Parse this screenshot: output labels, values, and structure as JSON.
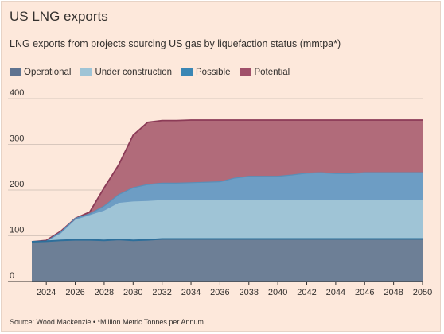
{
  "title": "US LNG exports",
  "subtitle": "LNG exports from projects sourcing US gas by liquefaction status (mmtpa*)",
  "source": "Source: Wood Mackenzie • *Million Metric Tonnes per Annum",
  "colors": {
    "background": "#fde8db",
    "gridline": "#d8c7bd",
    "operational": "#6d7f96",
    "under_construction": "#9fc4d6",
    "possible": "#6d9dc4",
    "potential": "#b16b7a",
    "operational_line": "#2d6f9b",
    "potential_line": "#8c3b57"
  },
  "chart_data": {
    "type": "area",
    "stacked": true,
    "title": "US LNG exports",
    "subtitle": "LNG exports from projects sourcing US gas by liquefaction status (mmtpa*)",
    "xlim": [
      2023,
      2050
    ],
    "ylim": [
      0,
      400
    ],
    "x_ticks": [
      "2024",
      "2026",
      "2028",
      "2030",
      "2032",
      "2034",
      "2036",
      "2038",
      "2040",
      "2042",
      "2044",
      "2046",
      "2048",
      "2050"
    ],
    "y_ticks": [
      "0",
      "100",
      "200",
      "300",
      "400"
    ],
    "grid": true,
    "legend_position": "top-left",
    "x": [
      2023,
      2024,
      2025,
      2026,
      2027,
      2028,
      2029,
      2030,
      2031,
      2032,
      2033,
      2034,
      2035,
      2036,
      2037,
      2038,
      2039,
      2040,
      2041,
      2042,
      2043,
      2044,
      2045,
      2046,
      2047,
      2048,
      2049,
      2050
    ],
    "series": [
      {
        "name": "Operational",
        "cumulative": [
          87,
          88,
          90,
          91,
          91,
          90,
          92,
          90,
          91,
          93,
          93,
          93,
          93,
          93,
          93,
          93,
          93,
          93,
          93,
          93,
          93,
          93,
          93,
          93,
          93,
          93,
          93,
          93
        ]
      },
      {
        "name": "Under construction",
        "cumulative": [
          87,
          88,
          105,
          135,
          145,
          155,
          172,
          175,
          176,
          178,
          178,
          178,
          178,
          178,
          179,
          179,
          179,
          179,
          179,
          179,
          179,
          179,
          179,
          179,
          179,
          179,
          179,
          179
        ]
      },
      {
        "name": "Possible",
        "cumulative": [
          87,
          88,
          108,
          138,
          148,
          165,
          190,
          205,
          212,
          215,
          215,
          216,
          217,
          218,
          226,
          230,
          230,
          230,
          233,
          237,
          238,
          236,
          236,
          238,
          238,
          238,
          238,
          238
        ]
      },
      {
        "name": "Potential",
        "cumulative": [
          87,
          90,
          110,
          138,
          152,
          205,
          255,
          320,
          348,
          352,
          352,
          353,
          353,
          353,
          353,
          353,
          353,
          353,
          353,
          353,
          353,
          353,
          353,
          353,
          353,
          353,
          353,
          353
        ]
      }
    ]
  }
}
